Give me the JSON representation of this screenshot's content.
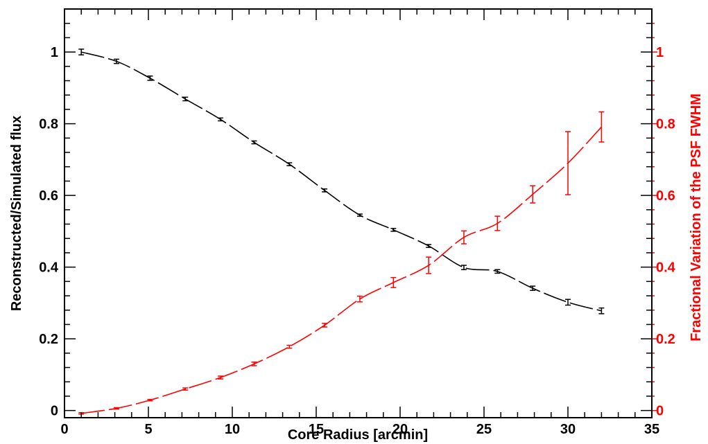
{
  "chart_data": {
    "type": "line",
    "xlabel": "Core Radius [arcmin]",
    "ylabel_left": "Reconstructed/Simulated flux",
    "ylabel_right": "Fractional Variation of the PSF FWHM",
    "xlim": [
      0,
      35
    ],
    "ylim_left": [
      -0.02,
      1.12
    ],
    "ylim_right": [
      -0.02,
      1.12
    ],
    "xticks": [
      0,
      5,
      10,
      15,
      20,
      25,
      30,
      35
    ],
    "yticks_left": [
      0,
      0.2,
      0.4,
      0.6,
      0.8,
      1
    ],
    "yticks_right": [
      0,
      0.2,
      0.4,
      0.6,
      0.8,
      1
    ],
    "xtick_labels": [
      "0",
      "5",
      "10",
      "15",
      "20",
      "25",
      "30",
      "35"
    ],
    "ytick_labels_left": [
      "0",
      "0.2",
      "0.4",
      "0.6",
      "0.8",
      "1"
    ],
    "ytick_labels_right": [
      "0",
      "0.2",
      "0.4",
      "0.6",
      "0.8",
      "1"
    ],
    "grid": false,
    "legend": false,
    "series": [
      {
        "axis": "left",
        "color": "#000000",
        "line_style": "dashed",
        "x": [
          1.0,
          3.1,
          5.1,
          7.2,
          9.3,
          11.3,
          13.4,
          15.5,
          17.6,
          19.6,
          21.7,
          23.8,
          25.8,
          27.9,
          30.0,
          32.0
        ],
        "y": [
          1.0,
          0.974,
          0.927,
          0.869,
          0.812,
          0.748,
          0.687,
          0.614,
          0.545,
          0.504,
          0.459,
          0.399,
          0.388,
          0.341,
          0.302,
          0.278
        ],
        "err": [
          0.008,
          0.006,
          0.006,
          0.005,
          0.004,
          0.004,
          0.004,
          0.004,
          0.003,
          0.004,
          0.004,
          0.006,
          0.005,
          0.006,
          0.008,
          0.008
        ]
      },
      {
        "axis": "right",
        "color": "#ff0000",
        "line_style": "dashed",
        "x": [
          1.0,
          3.1,
          5.1,
          7.2,
          9.3,
          11.3,
          13.4,
          15.5,
          17.6,
          19.6,
          21.7,
          23.8,
          25.8,
          27.9,
          30.0,
          32.0
        ],
        "y": [
          -0.008,
          0.006,
          0.029,
          0.06,
          0.092,
          0.13,
          0.178,
          0.238,
          0.311,
          0.357,
          0.405,
          0.483,
          0.522,
          0.603,
          0.69,
          0.791
        ],
        "err": [
          0.002,
          0.002,
          0.002,
          0.003,
          0.004,
          0.005,
          0.004,
          0.005,
          0.008,
          0.014,
          0.023,
          0.018,
          0.02,
          0.024,
          0.088,
          0.042
        ]
      }
    ],
    "colors": {
      "left_axis": "#000000",
      "right_axis": "#ff0000",
      "frame": "#000000"
    }
  }
}
